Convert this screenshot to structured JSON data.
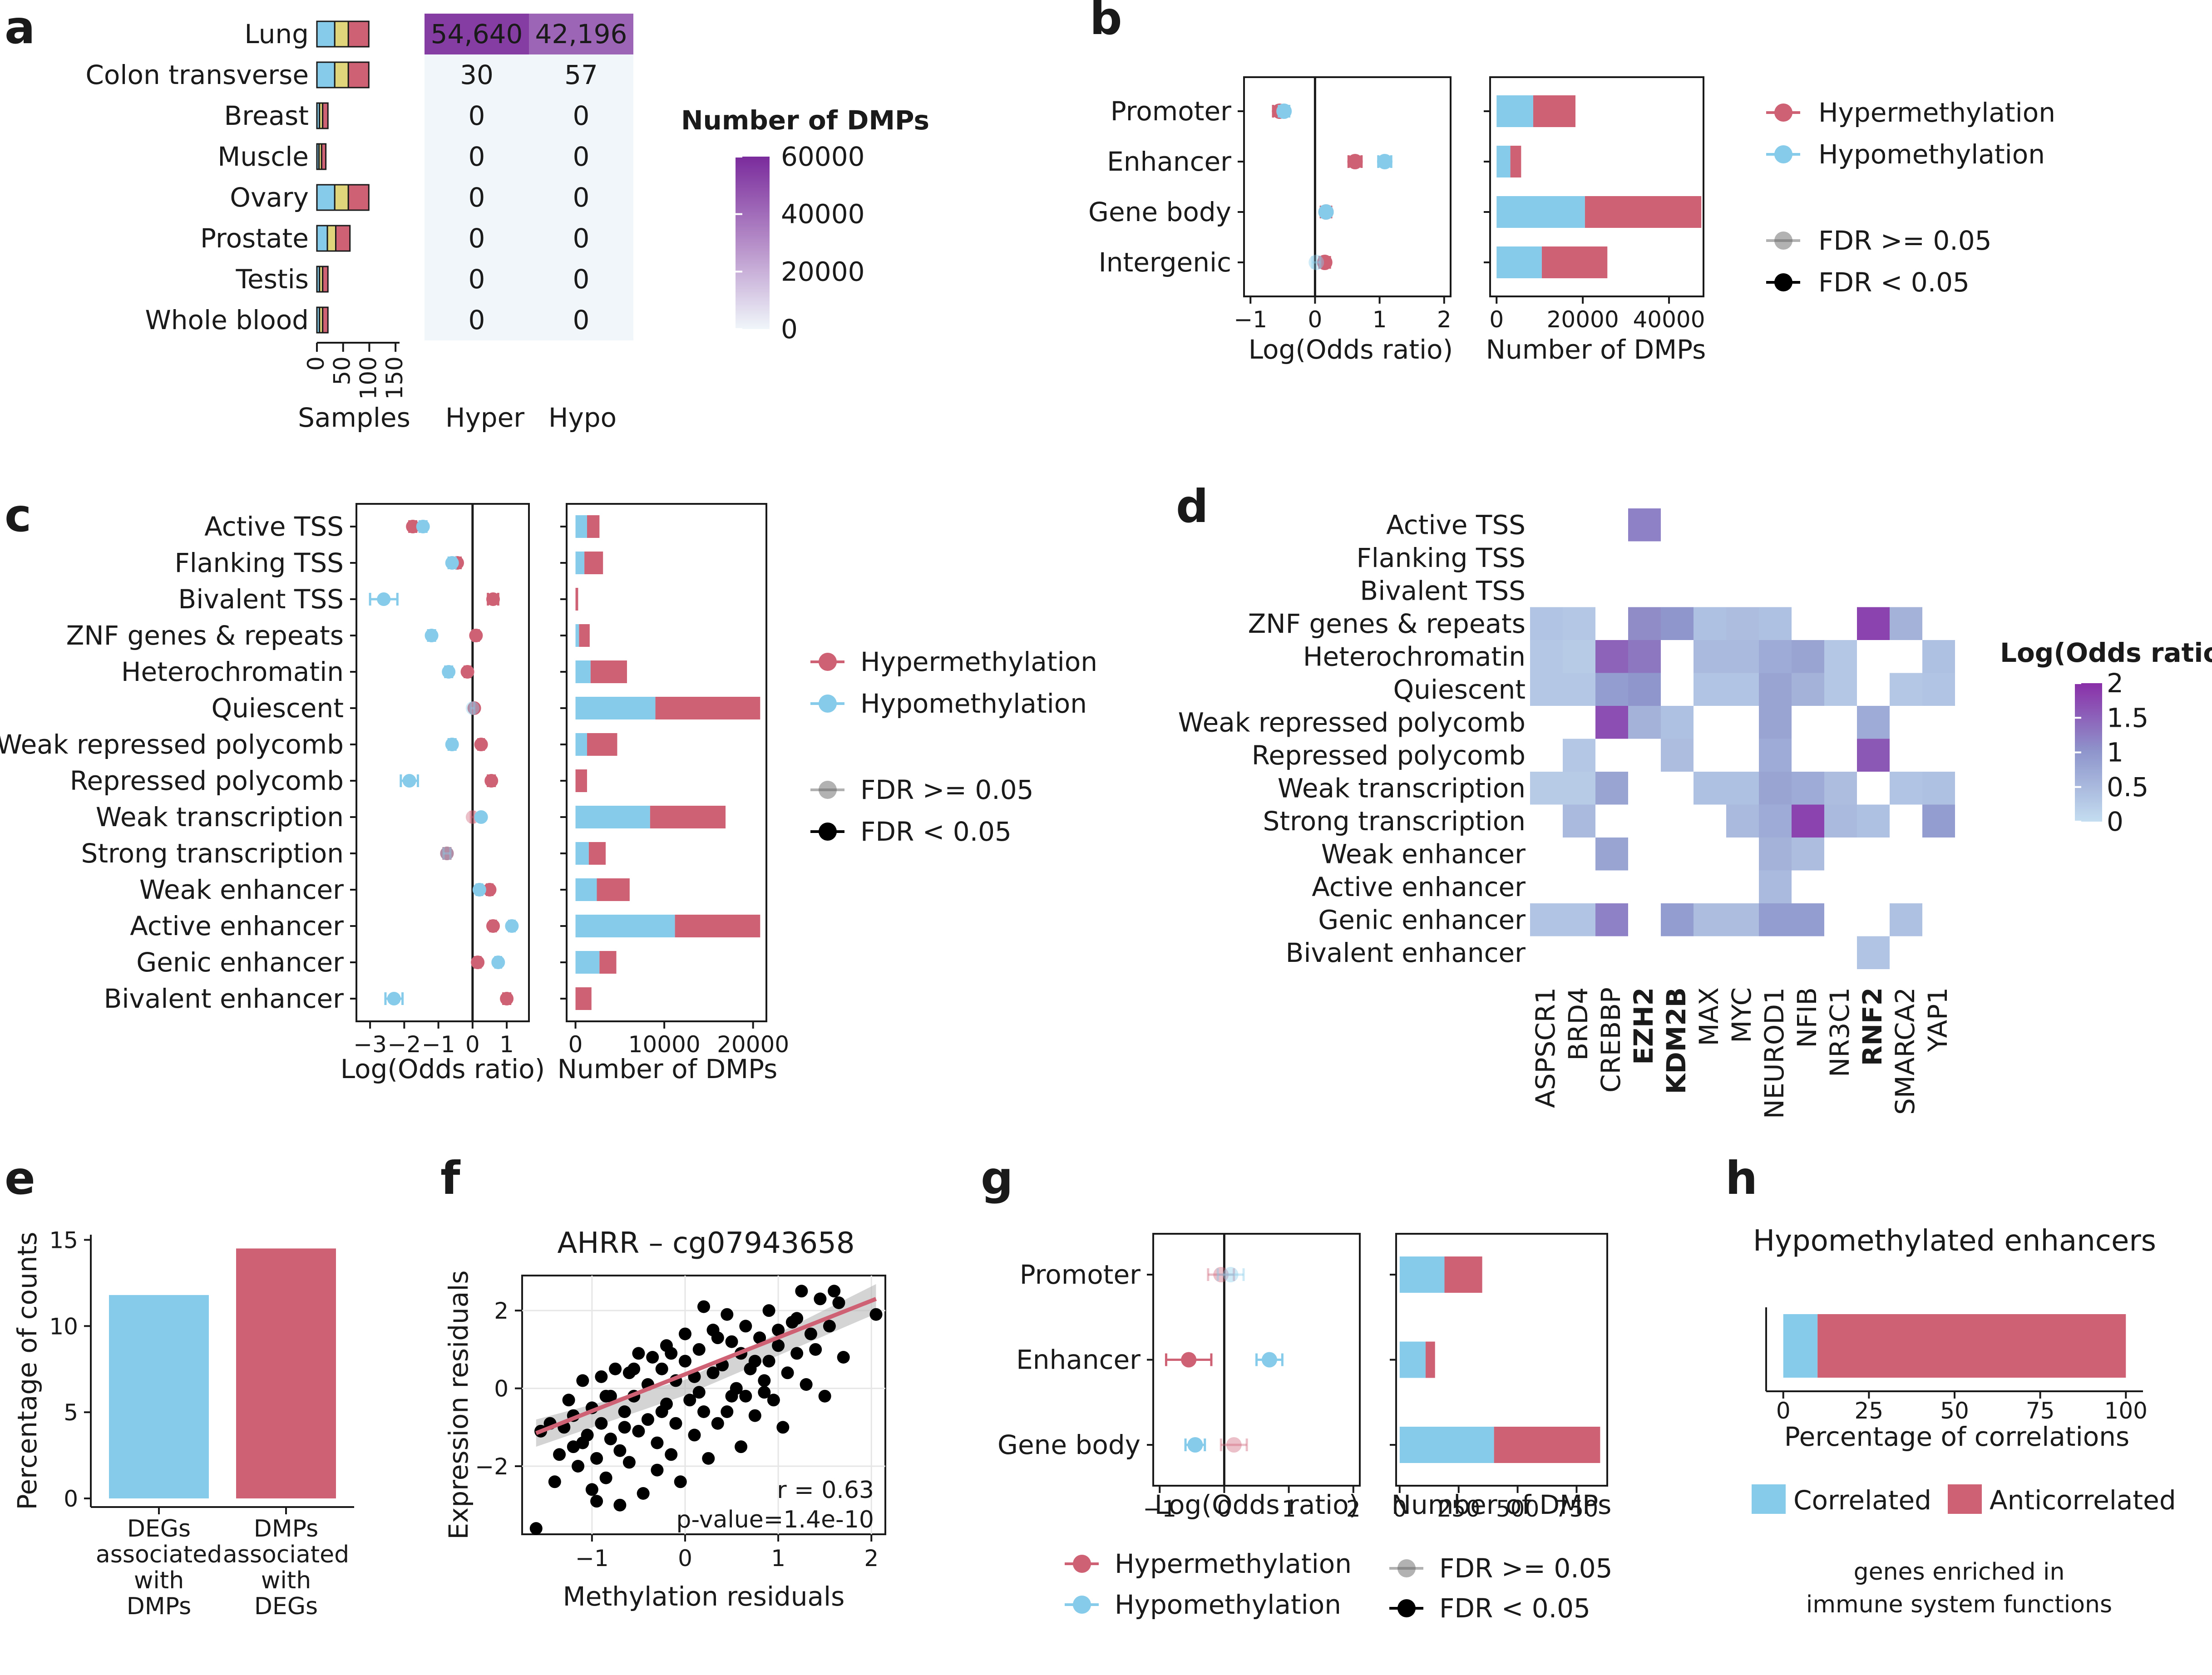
{
  "colors": {
    "hyper": "#cf6175",
    "hypo": "#86ccea",
    "samples_mid": "#e0d57a",
    "heat_low": "#f0f6fa",
    "heat_high": "#7a2b9c"
  },
  "panel_labels": {
    "a": "a",
    "b": "b",
    "c": "c",
    "d": "d",
    "e": "e",
    "f": "f",
    "g": "g",
    "h": "h"
  },
  "legends": {
    "hyper": "Hypermethylation",
    "hypo": "Hypomethylation",
    "fdr_ns": "FDR >= 0.05",
    "fdr_s": "FDR < 0.05",
    "dmps_title": "Number of DMPs",
    "dmps_ticks": [
      "60000",
      "40000",
      "20000",
      "0"
    ],
    "lor_title": "Log(Odds ratio)",
    "lor_ticks": [
      "2",
      "1.5",
      "1",
      "0.5",
      "0"
    ],
    "correlated": "Correlated",
    "anticorrelated": "Anticorrelated"
  },
  "axis_labels": {
    "samples": "Samples",
    "hyper": "Hyper",
    "hypo": "Hypo",
    "lor": "Log(Odds ratio)",
    "ndmps": "Number of DMPs",
    "pct_counts": "Percentage of counts",
    "expr_res": "Expression residuals",
    "meth_res": "Methylation residuals",
    "pct_corr": "Percentage of correlations"
  },
  "texts": {
    "f_title": "AHRR – cg07943658",
    "f_r": "r = 0.63",
    "f_p": "p-value=1.4e-10",
    "h_title": "Hypomethylated enhancers",
    "h_note1": "genes enriched in",
    "h_note2": "immune system functions",
    "e_cat1": [
      "DEGs",
      "associated",
      "with",
      "DMPs"
    ],
    "e_cat2": [
      "DMPs",
      "associated",
      "with",
      "DEGs"
    ]
  },
  "chart_data": [
    {
      "panel": "a",
      "type": "table",
      "title": "",
      "rows": [
        "Lung",
        "Colon transverse",
        "Breast",
        "Muscle",
        "Ovary",
        "Prostate",
        "Testis",
        "Whole blood"
      ],
      "samples": [
        [
          34,
          26,
          39
        ],
        [
          34,
          26,
          39
        ],
        [
          5,
          6,
          10
        ],
        [
          4,
          5,
          8
        ],
        [
          34,
          26,
          39
        ],
        [
          20,
          16,
          27
        ],
        [
          5,
          6,
          10
        ],
        [
          5,
          6,
          10
        ]
      ],
      "samples_ticks": [
        "0",
        "50",
        "100",
        "150"
      ],
      "samples_max": 175,
      "hyper": [
        54640,
        30,
        0,
        0,
        0,
        0,
        0,
        0
      ],
      "hyper_text": [
        "54,640",
        "30",
        "0",
        "0",
        "0",
        "0",
        "0",
        "0"
      ],
      "hypo": [
        42196,
        57,
        0,
        0,
        0,
        0,
        0,
        0
      ],
      "hypo_text": [
        "42,196",
        "57",
        "0",
        "0",
        "0",
        "0",
        "0",
        "0"
      ],
      "color_range": [
        0,
        60000
      ]
    },
    {
      "panel": "b",
      "type": "scatter",
      "categories": [
        "Promoter",
        "Enhancer",
        "Gene body",
        "Intergenic"
      ],
      "series": [
        {
          "name": "Hypermethylation",
          "lor": [
            -0.55,
            0.62,
            0.17,
            0.15
          ],
          "err": [
            0.1,
            0.1,
            0.08,
            0.08
          ],
          "fdr_sig": [
            true,
            true,
            true,
            true
          ]
        },
        {
          "name": "Hypomethylation",
          "lor": [
            -0.48,
            1.08,
            0.17,
            0.02
          ],
          "err": [
            0.08,
            0.1,
            0.06,
            0.06
          ],
          "fdr_sig": [
            true,
            true,
            true,
            false
          ]
        }
      ],
      "xlim": [
        -1.1,
        2.1
      ],
      "xticks": [
        "-1",
        "0",
        "1",
        "2"
      ],
      "bars": {
        "hypo": [
          8500,
          3200,
          20500,
          10500
        ],
        "hyper": [
          9800,
          2500,
          27000,
          15200
        ],
        "xlim": [
          -1500,
          48000
        ],
        "xticks": [
          "0",
          "20000",
          "40000"
        ]
      }
    },
    {
      "panel": "c",
      "type": "scatter",
      "categories": [
        "Active TSS",
        "Flanking TSS",
        "Bivalent TSS",
        "ZNF genes & repeats",
        "Heterochromatin",
        "Quiescent",
        "Weak repressed polycomb",
        "Repressed polycomb",
        "Weak transcription",
        "Strong transcription",
        "Weak enhancer",
        "Active enhancer",
        "Genic enhancer",
        "Bivalent enhancer"
      ],
      "series": [
        {
          "name": "Hypermethylation",
          "lor": [
            -1.75,
            -0.45,
            0.6,
            0.1,
            -0.15,
            0.05,
            0.25,
            0.55,
            0.0,
            -0.75,
            0.5,
            0.6,
            0.15,
            1.0
          ],
          "err": [
            0.1,
            0.1,
            0.15,
            0.08,
            0.08,
            0.05,
            0.08,
            0.1,
            0.05,
            0.1,
            0.08,
            0.08,
            0.08,
            0.1
          ],
          "fdr_sig": [
            true,
            true,
            true,
            true,
            true,
            true,
            true,
            true,
            false,
            true,
            true,
            true,
            true,
            true
          ]
        },
        {
          "name": "Hypomethylation",
          "lor": [
            -1.45,
            -0.6,
            -2.6,
            -1.2,
            -0.7,
            0.0,
            -0.6,
            -1.85,
            0.25,
            -0.75,
            0.2,
            1.15,
            0.75,
            -2.3
          ],
          "err": [
            0.1,
            0.1,
            0.4,
            0.1,
            0.1,
            0.05,
            0.1,
            0.25,
            0.05,
            0.1,
            0.08,
            0.08,
            0.08,
            0.25
          ],
          "fdr_sig": [
            true,
            true,
            true,
            true,
            true,
            false,
            true,
            true,
            true,
            false,
            true,
            true,
            true,
            true
          ]
        }
      ],
      "xlim": [
        -3.4,
        1.65
      ],
      "xticks": [
        "-3",
        "-2",
        "-1",
        "0",
        "1"
      ],
      "bars": {
        "hypo": [
          1300,
          1000,
          0,
          400,
          1700,
          9000,
          1300,
          0,
          8400,
          1500,
          2400,
          11200,
          2700,
          0
        ],
        "hyper": [
          1400,
          2100,
          300,
          1200,
          4100,
          11800,
          3400,
          1300,
          8500,
          1900,
          3700,
          9600,
          1900,
          1800
        ],
        "xlim": [
          -1000,
          21500
        ],
        "xticks": [
          "0",
          "10000",
          "20000"
        ]
      }
    },
    {
      "panel": "d",
      "type": "heatmap",
      "rows": [
        "Active TSS",
        "Flanking TSS",
        "Bivalent TSS",
        "ZNF genes & repeats",
        "Heterochromatin",
        "Quiescent",
        "Weak repressed polycomb",
        "Repressed polycomb",
        "Weak transcription",
        "Strong transcription",
        "Weak enhancer",
        "Active enhancer",
        "Genic enhancer",
        "Bivalent enhancer"
      ],
      "cols": [
        "ASPSCR1",
        "BRD4",
        "CREBBP",
        "EZH2",
        "KDM2B",
        "MAX",
        "MYC",
        "NEUROD1",
        "NFIB",
        "NR3C1",
        "RNF2",
        "SMARCA2",
        "YAP1"
      ],
      "bold_cols": [
        "EZH2",
        "KDM2B",
        "RNF2"
      ],
      "values": [
        [
          null,
          null,
          null,
          1.2,
          null,
          null,
          null,
          null,
          null,
          null,
          null,
          null,
          null
        ],
        [
          null,
          null,
          null,
          null,
          null,
          null,
          null,
          null,
          null,
          null,
          null,
          null,
          null
        ],
        [
          null,
          null,
          null,
          null,
          null,
          null,
          null,
          null,
          null,
          null,
          null,
          null,
          null
        ],
        [
          0.35,
          0.3,
          null,
          1.1,
          1.0,
          0.4,
          0.45,
          0.4,
          null,
          null,
          1.8,
          0.6,
          null
        ],
        [
          0.3,
          0.25,
          1.5,
          1.3,
          null,
          0.5,
          0.5,
          0.7,
          0.8,
          0.3,
          null,
          null,
          0.4
        ],
        [
          0.3,
          0.3,
          0.9,
          1.0,
          null,
          0.35,
          0.35,
          0.8,
          0.6,
          0.3,
          null,
          0.3,
          0.35
        ],
        [
          null,
          null,
          1.7,
          0.6,
          0.4,
          null,
          null,
          0.8,
          null,
          null,
          0.7,
          null,
          null
        ],
        [
          null,
          0.3,
          null,
          null,
          0.45,
          null,
          null,
          0.7,
          null,
          null,
          1.6,
          null,
          null
        ],
        [
          0.25,
          0.25,
          0.8,
          null,
          null,
          0.4,
          0.4,
          0.8,
          0.7,
          0.45,
          null,
          0.35,
          0.4
        ],
        [
          null,
          0.5,
          null,
          null,
          null,
          null,
          0.5,
          0.7,
          1.8,
          0.5,
          0.4,
          null,
          0.9
        ],
        [
          null,
          null,
          0.8,
          null,
          null,
          null,
          null,
          0.6,
          0.45,
          null,
          null,
          null,
          null
        ],
        [
          null,
          null,
          null,
          null,
          null,
          null,
          null,
          0.5,
          null,
          null,
          null,
          null,
          null
        ],
        [
          0.35,
          0.35,
          1.2,
          null,
          0.9,
          0.45,
          0.45,
          0.9,
          0.9,
          null,
          null,
          0.4,
          null
        ],
        [
          null,
          null,
          null,
          null,
          null,
          null,
          null,
          null,
          null,
          null,
          0.35,
          null,
          null
        ]
      ],
      "color_range": [
        0,
        2
      ]
    },
    {
      "panel": "e",
      "type": "bar",
      "categories": [
        "DEGs associated with DMPs",
        "DMPs associated with DEGs"
      ],
      "values": [
        11.8,
        14.5
      ],
      "ylim": [
        -0.5,
        15.3
      ],
      "yticks": [
        "0",
        "5",
        "10",
        "15"
      ]
    },
    {
      "panel": "f",
      "type": "scatter",
      "title": "AHRR – cg07943658",
      "xlabel": "Methylation residuals",
      "ylabel": "Expression residuals",
      "xlim": [
        -1.75,
        2.15
      ],
      "ylim": [
        -3.75,
        2.9
      ],
      "xticks": [
        "-1",
        "0",
        "1",
        "2"
      ],
      "yticks": [
        "2",
        "0",
        "-2"
      ],
      "fit": {
        "x0": -1.6,
        "y0": -1.15,
        "x1": 2.05,
        "y1": 2.3
      },
      "points": [
        [
          -1.6,
          -3.6
        ],
        [
          -1.55,
          -1.1
        ],
        [
          -1.45,
          -0.9
        ],
        [
          -1.4,
          -2.4
        ],
        [
          -1.35,
          -1.7
        ],
        [
          -1.3,
          -1.0
        ],
        [
          -1.25,
          -0.3
        ],
        [
          -1.2,
          -1.5
        ],
        [
          -1.2,
          -0.7
        ],
        [
          -1.15,
          -2.0
        ],
        [
          -1.1,
          0.2
        ],
        [
          -1.05,
          -1.2
        ],
        [
          -1.0,
          -0.5
        ],
        [
          -1.0,
          -2.6
        ],
        [
          -0.95,
          -1.8
        ],
        [
          -0.9,
          0.3
        ],
        [
          -0.9,
          -0.9
        ],
        [
          -0.85,
          -2.3
        ],
        [
          -0.8,
          -1.3
        ],
        [
          -0.8,
          -0.2
        ],
        [
          -0.75,
          0.5
        ],
        [
          -0.7,
          -1.6
        ],
        [
          -0.7,
          -3.0
        ],
        [
          -0.65,
          -0.6
        ],
        [
          -0.6,
          0.4
        ],
        [
          -0.6,
          -1.9
        ],
        [
          -0.55,
          -0.2
        ],
        [
          -0.5,
          -1.1
        ],
        [
          -0.5,
          0.9
        ],
        [
          -0.45,
          -2.7
        ],
        [
          -0.4,
          0.1
        ],
        [
          -0.4,
          -0.8
        ],
        [
          -0.35,
          0.8
        ],
        [
          -0.3,
          -1.4
        ],
        [
          -0.3,
          -2.1
        ],
        [
          -0.25,
          0.5
        ],
        [
          -0.2,
          -0.4
        ],
        [
          -0.2,
          1.1
        ],
        [
          -0.15,
          -1.7
        ],
        [
          -0.1,
          0.2
        ],
        [
          -0.1,
          -0.9
        ],
        [
          -0.05,
          -2.4
        ],
        [
          0.0,
          0.7
        ],
        [
          0.0,
          1.4
        ],
        [
          0.05,
          -0.3
        ],
        [
          0.1,
          -1.2
        ],
        [
          0.1,
          0.3
        ],
        [
          0.15,
          1.0
        ],
        [
          0.2,
          -0.6
        ],
        [
          0.2,
          2.1
        ],
        [
          0.25,
          -1.8
        ],
        [
          0.3,
          0.4
        ],
        [
          0.3,
          1.5
        ],
        [
          0.35,
          -0.9
        ],
        [
          0.4,
          0.6
        ],
        [
          0.45,
          1.9
        ],
        [
          0.5,
          -0.2
        ],
        [
          0.5,
          1.2
        ],
        [
          0.55,
          0.0
        ],
        [
          0.6,
          0.9
        ],
        [
          0.6,
          -1.5
        ],
        [
          0.65,
          1.6
        ],
        [
          0.7,
          0.5
        ],
        [
          0.75,
          -0.7
        ],
        [
          0.8,
          1.3
        ],
        [
          0.85,
          0.2
        ],
        [
          0.9,
          2.0
        ],
        [
          0.9,
          0.7
        ],
        [
          0.95,
          -0.3
        ],
        [
          1.0,
          1.1
        ],
        [
          1.05,
          -1.0
        ],
        [
          1.1,
          0.4
        ],
        [
          1.15,
          1.7
        ],
        [
          1.2,
          0.9
        ],
        [
          1.25,
          2.5
        ],
        [
          1.3,
          0.1
        ],
        [
          1.35,
          1.4
        ],
        [
          1.4,
          1.0
        ],
        [
          1.45,
          2.3
        ],
        [
          1.5,
          -0.2
        ],
        [
          1.55,
          1.6
        ],
        [
          1.6,
          2.5
        ],
        [
          1.65,
          2.2
        ],
        [
          1.7,
          0.8
        ],
        [
          2.05,
          1.9
        ],
        [
          -0.55,
          0.5
        ],
        [
          -0.25,
          -0.6
        ],
        [
          0.15,
          -0.1
        ],
        [
          0.45,
          -0.6
        ],
        [
          0.75,
          0.7
        ],
        [
          -0.85,
          -0.2
        ],
        [
          -1.1,
          -1.4
        ],
        [
          0.35,
          1.3
        ],
        [
          0.65,
          -0.2
        ],
        [
          -0.15,
          0.9
        ],
        [
          1.0,
          1.5
        ],
        [
          -0.95,
          -2.9
        ],
        [
          0.85,
          -0.1
        ],
        [
          1.2,
          1.8
        ],
        [
          -0.65,
          -1.0
        ]
      ]
    },
    {
      "panel": "g",
      "type": "scatter",
      "categories": [
        "Promoter",
        "Enhancer",
        "Gene body"
      ],
      "series": [
        {
          "name": "Hypermethylation",
          "lor": [
            -0.05,
            -0.55,
            0.15
          ],
          "err": [
            0.2,
            0.35,
            0.2
          ],
          "fdr_sig": [
            false,
            true,
            false
          ]
        },
        {
          "name": "Hypomethylation",
          "lor": [
            0.1,
            0.7,
            -0.45
          ],
          "err": [
            0.2,
            0.2,
            0.15
          ],
          "fdr_sig": [
            false,
            true,
            true
          ]
        }
      ],
      "xlim": [
        -1.1,
        2.1
      ],
      "xticks": [
        "-1",
        "0",
        "1",
        "2"
      ],
      "bars": {
        "hypo": [
          190,
          110,
          400
        ],
        "hyper": [
          160,
          40,
          450
        ],
        "xlim": [
          -15,
          880
        ],
        "xticks": [
          "0",
          "250",
          "500",
          "750"
        ]
      }
    },
    {
      "panel": "h",
      "type": "bar",
      "title": "Hypomethylated enhancers",
      "xlabel": "Percentage of correlations",
      "series": [
        {
          "name": "Correlated",
          "values": [
            10
          ]
        },
        {
          "name": "Anticorrelated",
          "values": [
            90
          ]
        }
      ],
      "xlim": [
        -5,
        105
      ],
      "xticks": [
        "0",
        "25",
        "50",
        "75",
        "100"
      ]
    }
  ]
}
